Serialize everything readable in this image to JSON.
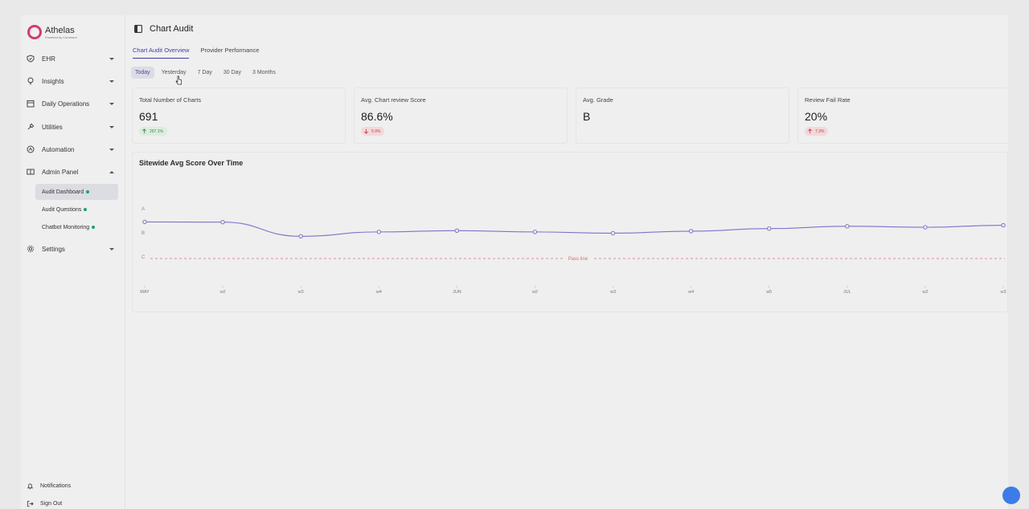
{
  "brand": {
    "name": "Athelas",
    "subtitle": "Powered by Commure",
    "color": "#d63b6a"
  },
  "sidebar": {
    "items": [
      {
        "label": "EHR",
        "icon": "shield-icon"
      },
      {
        "label": "Insights",
        "icon": "lightbulb-icon"
      },
      {
        "label": "Daily Operations",
        "icon": "calendar-icon"
      },
      {
        "label": "Utilities",
        "icon": "wrench-icon"
      },
      {
        "label": "Automation",
        "icon": "automation-icon"
      },
      {
        "label": "Admin Panel",
        "icon": "book-icon",
        "expanded": true
      }
    ],
    "sub_items": [
      {
        "label": "Audit Dashboard",
        "active": true
      },
      {
        "label": "Audit Questions"
      },
      {
        "label": "Chatbot Monitoring"
      }
    ],
    "settings": "Settings",
    "bottom": {
      "notifications": "Notifications",
      "sign_out": "Sign Out"
    }
  },
  "page": {
    "title": "Chart Audit"
  },
  "tabs": [
    {
      "label": "Chart Audit Overview",
      "active": true
    },
    {
      "label": "Provider Performance"
    }
  ],
  "ranges": [
    {
      "label": "Today",
      "active": true
    },
    {
      "label": "Yesterday"
    },
    {
      "label": "7 Day"
    },
    {
      "label": "30 Day"
    },
    {
      "label": "3 Months"
    }
  ],
  "cards": [
    {
      "label": "Total Number of Charts",
      "value": "691",
      "badge": "297.1%",
      "trend": "up-green"
    },
    {
      "label": "Avg. Chart review Score",
      "value": "86.6%",
      "badge": "5.9%",
      "trend": "down-red"
    },
    {
      "label": "Avg. Grade",
      "value": "B",
      "badge": "",
      "trend": ""
    },
    {
      "label": "Review Fail Rate",
      "value": "20%",
      "badge": "7.3%",
      "trend": "up-red"
    }
  ],
  "chart_data": {
    "type": "line",
    "title": "Sitewide Avg Score Over Time",
    "x": [
      "MAY",
      "w2",
      "w3",
      "w4",
      "JUN",
      "w2",
      "w3",
      "w4",
      "w5",
      "JUL",
      "w2",
      "w3"
    ],
    "y_ticks": [
      "A",
      "B",
      "C"
    ],
    "series": [
      {
        "values": [
          90.5,
          90.4,
          84.9,
          86.6,
          87.1,
          86.6,
          86.1,
          86.9,
          87.9,
          88.8,
          88.4,
          89.2
        ]
      }
    ],
    "ylim": [
      70,
      95
    ],
    "pass_line": {
      "label": "Pass line",
      "value": 70
    },
    "line_color": "#7a74c8",
    "pass_line_color": "#e06b73"
  }
}
